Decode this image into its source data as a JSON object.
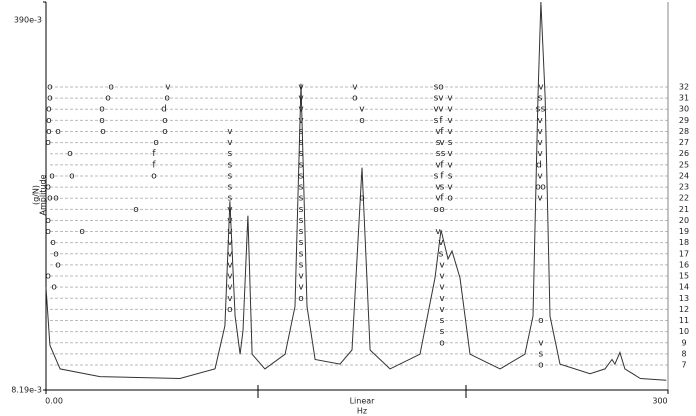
{
  "chart_data": {
    "type": "line",
    "y_label": "Amplitude",
    "y_unit": "(g/N)",
    "x_label": "Hz",
    "x_scale_label": "Linear",
    "log_y": true,
    "color": "#333333",
    "xlim": [
      0,
      300
    ],
    "ylim": [
      0.00819,
      0.39
    ],
    "xticks": [
      {
        "value": 0,
        "label": "0.00"
      },
      300
    ],
    "yticks": [
      {
        "value": 0.39,
        "label": "390e-3"
      },
      {
        "value": 0.00819,
        "label": "8.19e-3"
      }
    ],
    "x": [
      0,
      1.9,
      6.8,
      26,
      64.6,
      81.5,
      86.3,
      88.7,
      91.2,
      93.6,
      95,
      97.4,
      99.4,
      105.6,
      115.3,
      120.1,
      123,
      125.9,
      129.8,
      141.8,
      147.6,
      152.4,
      156.3,
      165.9,
      180.4,
      187.6,
      190.5,
      193.9,
      195.8,
      199.7,
      204.5,
      219,
      231,
      234.9,
      237.3,
      238.7,
      240.7,
      243.1,
      247.9,
      262.4,
      269.6,
      273,
      274.4,
      276.8,
      279.2,
      286.7,
      299.2
    ],
    "values": [
      0.0228,
      0.0128,
      0.0101,
      0.00936,
      0.00918,
      0.0101,
      0.0155,
      0.0536,
      0.0171,
      0.0117,
      0.0148,
      0.0465,
      0.0117,
      0.0101,
      0.0117,
      0.0188,
      0.173,
      0.0188,
      0.0111,
      0.0106,
      0.0122,
      0.0749,
      0.0122,
      0.0101,
      0.0117,
      0.025,
      0.0403,
      0.0302,
      0.0327,
      0.025,
      0.0117,
      0.0101,
      0.0117,
      0.0171,
      0.153,
      0.39,
      0.153,
      0.0171,
      0.0106,
      0.00963,
      0.0101,
      0.0111,
      0.0106,
      0.0119,
      0.0101,
      0.00918,
      0.00903
    ],
    "rows": [
      7,
      8,
      9,
      10,
      11,
      12,
      13,
      14,
      15,
      16,
      17,
      18,
      19,
      20,
      21,
      22,
      23,
      24,
      25,
      26,
      27,
      28,
      29,
      30,
      31,
      32
    ],
    "markers": [
      {
        "x": 1.9,
        "row": 32,
        "text": "o"
      },
      {
        "x": 31.4,
        "row": 32,
        "text": "o"
      },
      {
        "x": 58.8,
        "row": 32,
        "text": "v"
      },
      {
        "x": 123,
        "row": 32,
        "text": "v"
      },
      {
        "x": 149,
        "row": 32,
        "text": "v"
      },
      {
        "x": 188.1,
        "row": 32,
        "text": "s"
      },
      {
        "x": 190.5,
        "row": 32,
        "text": "o"
      },
      {
        "x": 238.7,
        "row": 32,
        "text": "v"
      },
      {
        "x": 1.9,
        "row": 31,
        "text": "o"
      },
      {
        "x": 29.9,
        "row": 31,
        "text": "o"
      },
      {
        "x": 58.4,
        "row": 31,
        "text": "o"
      },
      {
        "x": 123,
        "row": 31,
        "text": "v"
      },
      {
        "x": 149,
        "row": 31,
        "text": "o"
      },
      {
        "x": 188.1,
        "row": 31,
        "text": "s"
      },
      {
        "x": 190.5,
        "row": 31,
        "text": "v"
      },
      {
        "x": 194.9,
        "row": 31,
        "text": "v"
      },
      {
        "x": 238.3,
        "row": 31,
        "text": "s"
      },
      {
        "x": 1.4,
        "row": 30,
        "text": "o"
      },
      {
        "x": 27,
        "row": 30,
        "text": "o"
      },
      {
        "x": 56.9,
        "row": 30,
        "text": "d"
      },
      {
        "x": 123,
        "row": 30,
        "text": "v"
      },
      {
        "x": 152.4,
        "row": 30,
        "text": "v"
      },
      {
        "x": 188.1,
        "row": 30,
        "text": "v"
      },
      {
        "x": 190.5,
        "row": 30,
        "text": "v"
      },
      {
        "x": 194.9,
        "row": 30,
        "text": "v"
      },
      {
        "x": 237.3,
        "row": 30,
        "text": "s"
      },
      {
        "x": 239.7,
        "row": 30,
        "text": "s"
      },
      {
        "x": 1.4,
        "row": 29,
        "text": "o"
      },
      {
        "x": 27,
        "row": 29,
        "text": "o"
      },
      {
        "x": 57.4,
        "row": 29,
        "text": "o"
      },
      {
        "x": 123,
        "row": 29,
        "text": "v"
      },
      {
        "x": 152.4,
        "row": 29,
        "text": "o"
      },
      {
        "x": 188.1,
        "row": 29,
        "text": "s"
      },
      {
        "x": 190.5,
        "row": 29,
        "text": "f"
      },
      {
        "x": 194.9,
        "row": 29,
        "text": "v"
      },
      {
        "x": 238.3,
        "row": 29,
        "text": "v"
      },
      {
        "x": 1.4,
        "row": 28,
        "text": "o"
      },
      {
        "x": 5.8,
        "row": 28,
        "text": "o"
      },
      {
        "x": 27.5,
        "row": 28,
        "text": "o"
      },
      {
        "x": 57.4,
        "row": 28,
        "text": "o"
      },
      {
        "x": 88.7,
        "row": 28,
        "text": "v"
      },
      {
        "x": 123,
        "row": 28,
        "text": "s"
      },
      {
        "x": 189.1,
        "row": 28,
        "text": "v"
      },
      {
        "x": 191,
        "row": 28,
        "text": "f"
      },
      {
        "x": 194.9,
        "row": 28,
        "text": "v"
      },
      {
        "x": 238.3,
        "row": 28,
        "text": "v"
      },
      {
        "x": 1,
        "row": 27,
        "text": "o"
      },
      {
        "x": 53.1,
        "row": 27,
        "text": "o"
      },
      {
        "x": 88.7,
        "row": 27,
        "text": "v"
      },
      {
        "x": 123,
        "row": 27,
        "text": "s"
      },
      {
        "x": 189.1,
        "row": 27,
        "text": "s"
      },
      {
        "x": 191,
        "row": 27,
        "text": "v"
      },
      {
        "x": 194.9,
        "row": 27,
        "text": "s"
      },
      {
        "x": 238.3,
        "row": 27,
        "text": "v"
      },
      {
        "x": 11.6,
        "row": 26,
        "text": "o"
      },
      {
        "x": 52.1,
        "row": 26,
        "text": "f"
      },
      {
        "x": 88.7,
        "row": 26,
        "text": "s"
      },
      {
        "x": 123,
        "row": 26,
        "text": "s"
      },
      {
        "x": 189.1,
        "row": 26,
        "text": "s"
      },
      {
        "x": 191.5,
        "row": 26,
        "text": "s"
      },
      {
        "x": 194.9,
        "row": 26,
        "text": "v"
      },
      {
        "x": 238.3,
        "row": 26,
        "text": "v"
      },
      {
        "x": 52.1,
        "row": 25,
        "text": "f"
      },
      {
        "x": 88.7,
        "row": 25,
        "text": "s"
      },
      {
        "x": 123,
        "row": 25,
        "text": "s"
      },
      {
        "x": 189.1,
        "row": 25,
        "text": "v"
      },
      {
        "x": 191,
        "row": 25,
        "text": "f"
      },
      {
        "x": 194.9,
        "row": 25,
        "text": "v"
      },
      {
        "x": 237.8,
        "row": 25,
        "text": "d"
      },
      {
        "x": 2.9,
        "row": 24,
        "text": "o"
      },
      {
        "x": 12.5,
        "row": 24,
        "text": "o"
      },
      {
        "x": 52.1,
        "row": 24,
        "text": "o"
      },
      {
        "x": 88.7,
        "row": 24,
        "text": "s"
      },
      {
        "x": 123,
        "row": 24,
        "text": "s"
      },
      {
        "x": 188.1,
        "row": 24,
        "text": "s"
      },
      {
        "x": 191,
        "row": 24,
        "text": "f"
      },
      {
        "x": 194.9,
        "row": 24,
        "text": "s"
      },
      {
        "x": 238.3,
        "row": 24,
        "text": "v"
      },
      {
        "x": 1,
        "row": 23,
        "text": "o"
      },
      {
        "x": 88.7,
        "row": 23,
        "text": "s"
      },
      {
        "x": 123,
        "row": 23,
        "text": "s"
      },
      {
        "x": 189.1,
        "row": 23,
        "text": "v"
      },
      {
        "x": 191,
        "row": 23,
        "text": "s"
      },
      {
        "x": 194.9,
        "row": 23,
        "text": "v"
      },
      {
        "x": 237.3,
        "row": 23,
        "text": "o"
      },
      {
        "x": 239.7,
        "row": 23,
        "text": "o"
      },
      {
        "x": 1.9,
        "row": 22,
        "text": "o"
      },
      {
        "x": 4.8,
        "row": 22,
        "text": "o"
      },
      {
        "x": 88.7,
        "row": 22,
        "text": "s"
      },
      {
        "x": 123,
        "row": 22,
        "text": "s"
      },
      {
        "x": 152.4,
        "row": 22,
        "text": "o"
      },
      {
        "x": 189.1,
        "row": 22,
        "text": "v"
      },
      {
        "x": 191,
        "row": 22,
        "text": "f"
      },
      {
        "x": 194.9,
        "row": 22,
        "text": "o"
      },
      {
        "x": 238.3,
        "row": 22,
        "text": "v"
      },
      {
        "x": 43.4,
        "row": 21,
        "text": "o"
      },
      {
        "x": 88.7,
        "row": 21,
        "text": "v"
      },
      {
        "x": 123,
        "row": 21,
        "text": "s"
      },
      {
        "x": 188.1,
        "row": 21,
        "text": "o"
      },
      {
        "x": 191,
        "row": 21,
        "text": "o"
      },
      {
        "x": 1,
        "row": 20,
        "text": "o"
      },
      {
        "x": 88.7,
        "row": 20,
        "text": "v"
      },
      {
        "x": 123,
        "row": 20,
        "text": "s"
      },
      {
        "x": 1,
        "row": 19,
        "text": "o"
      },
      {
        "x": 17.4,
        "row": 19,
        "text": "o"
      },
      {
        "x": 88.7,
        "row": 19,
        "text": "v"
      },
      {
        "x": 123,
        "row": 19,
        "text": "s"
      },
      {
        "x": 189.1,
        "row": 19,
        "text": "v"
      },
      {
        "x": 3.4,
        "row": 18,
        "text": "o"
      },
      {
        "x": 88.7,
        "row": 18,
        "text": "v"
      },
      {
        "x": 123,
        "row": 18,
        "text": "s"
      },
      {
        "x": 190.5,
        "row": 18,
        "text": "v"
      },
      {
        "x": 4.8,
        "row": 17,
        "text": "o"
      },
      {
        "x": 88.7,
        "row": 17,
        "text": "v"
      },
      {
        "x": 123,
        "row": 17,
        "text": "s"
      },
      {
        "x": 190.5,
        "row": 17,
        "text": "s"
      },
      {
        "x": 5.8,
        "row": 16,
        "text": "o"
      },
      {
        "x": 88.7,
        "row": 16,
        "text": "v"
      },
      {
        "x": 123,
        "row": 16,
        "text": "s"
      },
      {
        "x": 191,
        "row": 16,
        "text": "v"
      },
      {
        "x": 1,
        "row": 15,
        "text": "o"
      },
      {
        "x": 88.7,
        "row": 15,
        "text": "v"
      },
      {
        "x": 123,
        "row": 15,
        "text": "v"
      },
      {
        "x": 191,
        "row": 15,
        "text": "v"
      },
      {
        "x": 3.9,
        "row": 14,
        "text": "o"
      },
      {
        "x": 88.7,
        "row": 14,
        "text": "v"
      },
      {
        "x": 123,
        "row": 14,
        "text": "v"
      },
      {
        "x": 191,
        "row": 14,
        "text": "v"
      },
      {
        "x": 88.7,
        "row": 13,
        "text": "v"
      },
      {
        "x": 123,
        "row": 13,
        "text": "o"
      },
      {
        "x": 191,
        "row": 13,
        "text": "v"
      },
      {
        "x": 88.7,
        "row": 12,
        "text": "o"
      },
      {
        "x": 191,
        "row": 12,
        "text": "v"
      },
      {
        "x": 191,
        "row": 11,
        "text": "s"
      },
      {
        "x": 238.7,
        "row": 11,
        "text": "o"
      },
      {
        "x": 191,
        "row": 10,
        "text": "s"
      },
      {
        "x": 191,
        "row": 9,
        "text": "o"
      },
      {
        "x": 238.7,
        "row": 9,
        "text": "v"
      },
      {
        "x": 238.7,
        "row": 8,
        "text": "s"
      },
      {
        "x": 238.7,
        "row": 7,
        "text": "o"
      }
    ]
  }
}
